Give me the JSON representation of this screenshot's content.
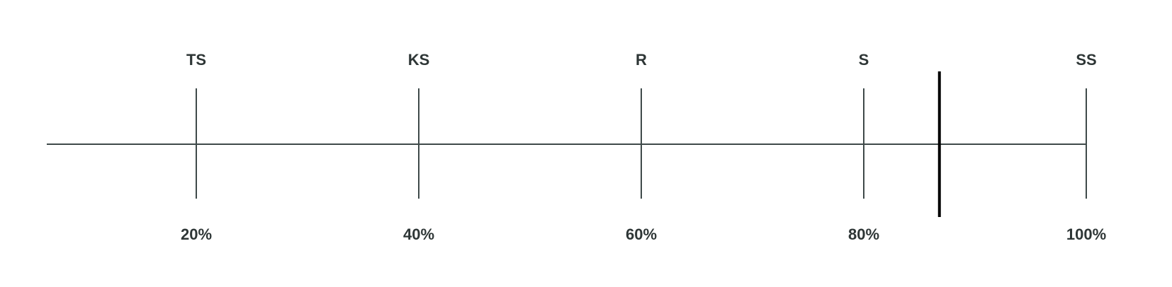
{
  "scale": {
    "min_percent": 0,
    "max_percent": 100,
    "ticks": [
      {
        "value": 20,
        "top_label": "TS",
        "bottom_label": "20%"
      },
      {
        "value": 40,
        "top_label": "KS",
        "bottom_label": "40%"
      },
      {
        "value": 60,
        "top_label": "R",
        "bottom_label": "60%"
      },
      {
        "value": 80,
        "top_label": "S",
        "bottom_label": "80%"
      },
      {
        "value": 100,
        "top_label": "SS",
        "bottom_label": "100%"
      }
    ],
    "marker_value": 86.8
  },
  "colors": {
    "axis": "#3f4a4a",
    "marker": "#000000",
    "text": "#2e3636"
  }
}
